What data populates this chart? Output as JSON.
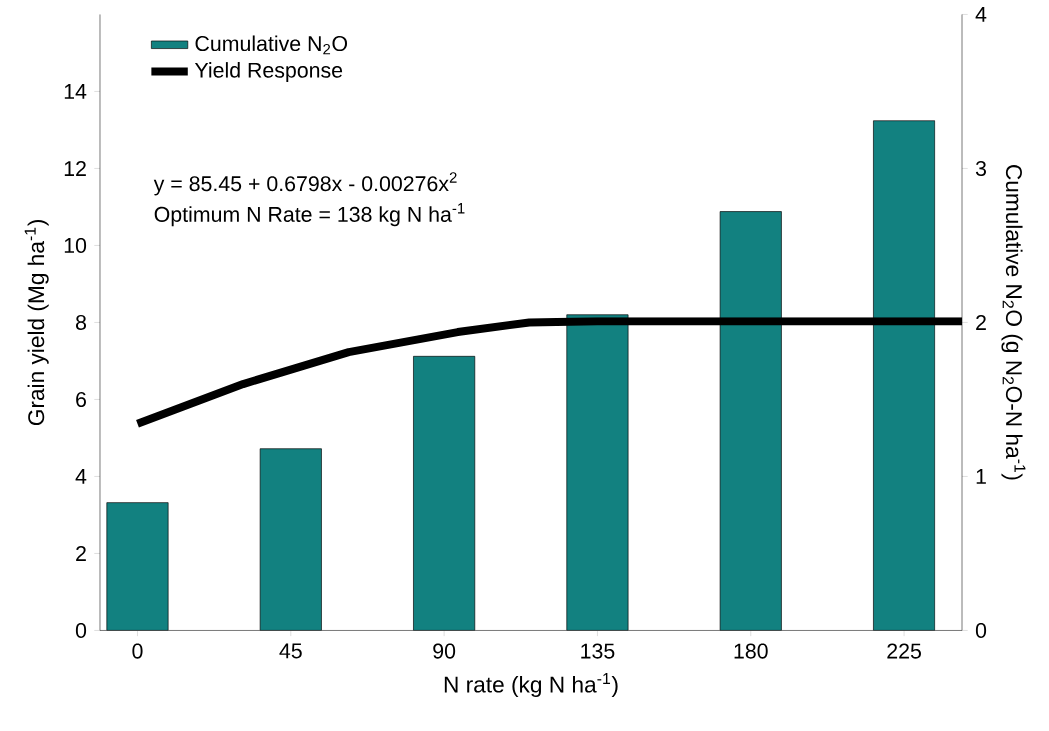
{
  "chart_data": {
    "type": "bar",
    "xlabel": "N rate (kg N ha$^{-1}$)",
    "ylabel": "Grain yield (Mg ha$^{-1}$)",
    "y2label": "Cumulative N$_{2}$O (g N$_{2}$O-N ha$^{-1}$)",
    "xlim": [
      -11,
      242
    ],
    "xticks": [
      0,
      45,
      90,
      135,
      180,
      225
    ],
    "ylim": [
      0,
      16
    ],
    "yticks": [
      0,
      2,
      4,
      6,
      8,
      10,
      12,
      14
    ],
    "y2lim": [
      0,
      4
    ],
    "y2ticks": [
      0,
      1,
      2,
      3,
      4
    ],
    "legend": "top left",
    "annotations": [
      "y = 85.45 + 0.6798x - 0.00276x$^{2}$",
      "Optimum N Rate = 138 kg N ha$^{-1}$"
    ],
    "series": [
      {
        "name": "Cumulative N$_{2}$O",
        "axis": "y2",
        "color": "#128180",
        "x": [
          0,
          45,
          90,
          135,
          180,
          225
        ],
        "values": [
          0.83,
          1.18,
          1.78,
          2.05,
          2.72,
          3.31
        ]
      },
      {
        "name": "Yield Response",
        "type": "line",
        "color": "#000000",
        "x": [
          0,
          31,
          62,
          94,
          115,
          135,
          180,
          225,
          242
        ],
        "values": [
          5.37,
          6.4,
          7.23,
          7.75,
          8.0,
          8.03,
          8.03,
          8.03,
          8.03
        ]
      }
    ]
  }
}
